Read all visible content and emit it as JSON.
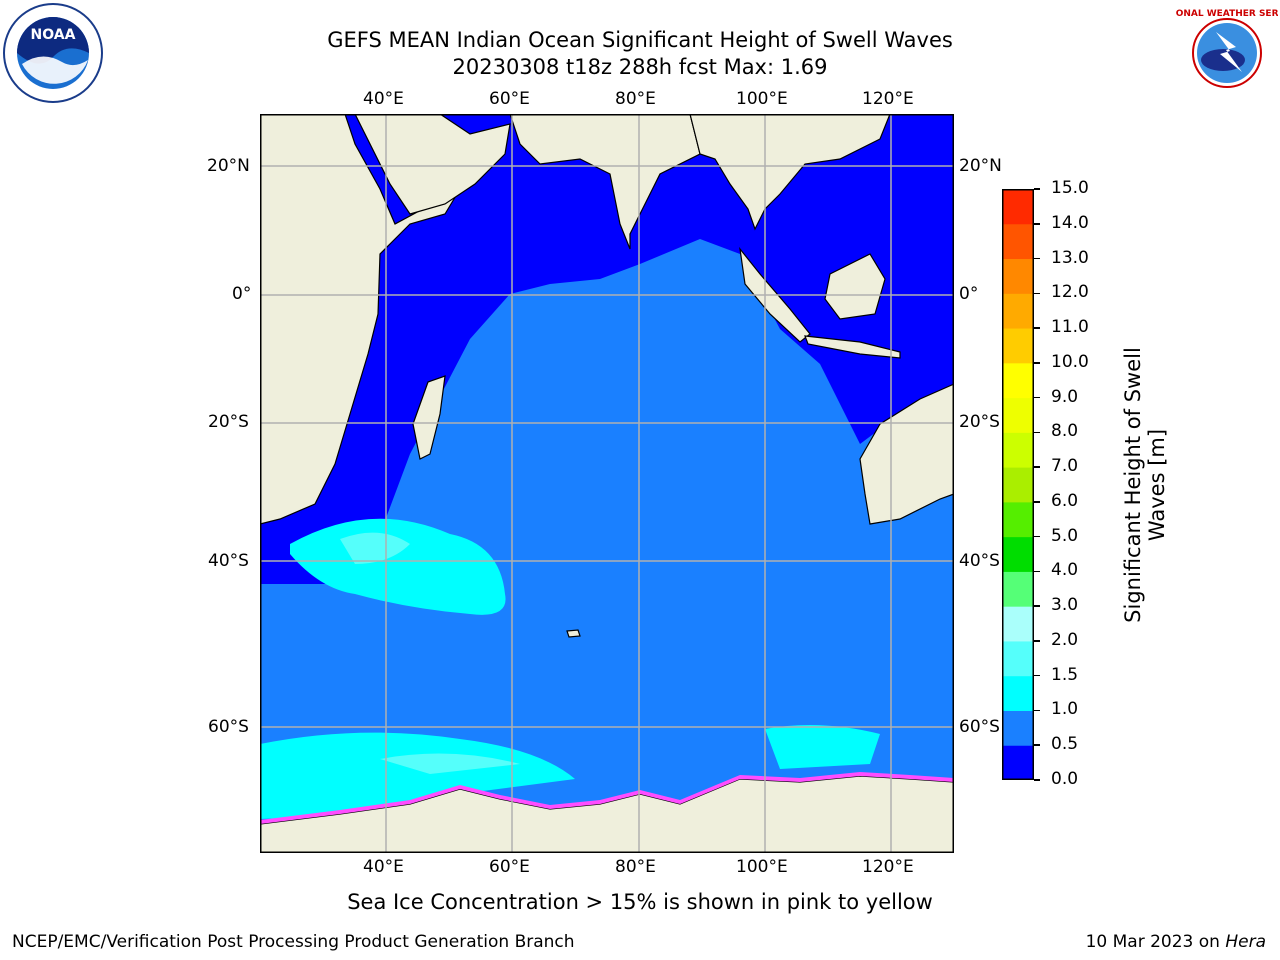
{
  "header": {
    "title_line1": "GEFS MEAN Indian Ocean Significant Height of Swell Waves",
    "title_line2": "20230308 t18z 288h fcst   Max: 1.69"
  },
  "logos": {
    "left_name": "NOAA",
    "right_name": "NATIONAL WEATHER SERVICE"
  },
  "map": {
    "lon_labels": [
      "40°E",
      "60°E",
      "80°E",
      "100°E",
      "120°E"
    ],
    "lat_labels": [
      "20°N",
      "0°",
      "20°S",
      "40°S",
      "60°S"
    ],
    "colors": {
      "land": "#efefdc",
      "deep_blue": "#0000ff",
      "mid_blue": "#1a80ff",
      "cyan": "#00ffff",
      "light_cyan": "#55fffb",
      "ice_pink": "#ff4dff",
      "ice_yellow": "#ffff00",
      "grid": "#b0b0b0"
    }
  },
  "colorbar": {
    "label": "Significant Height of Swell Waves [m]",
    "label_line1": "Significant Height of Swell",
    "label_line2": "Waves [m]",
    "ticks": [
      "0.0",
      "0.5",
      "1.0",
      "1.5",
      "2.0",
      "3.0",
      "4.0",
      "5.0",
      "6.0",
      "7.0",
      "8.0",
      "9.0",
      "10.0",
      "11.0",
      "12.0",
      "13.0",
      "14.0",
      "15.0"
    ],
    "colors": [
      "#0000ff",
      "#1a80ff",
      "#00ffff",
      "#55fffb",
      "#aafffb",
      "#55ff77",
      "#00dd00",
      "#55ee00",
      "#aaee00",
      "#ccff00",
      "#eeff00",
      "#ffff00",
      "#ffcc00",
      "#ffaa00",
      "#ff8800",
      "#ff5500",
      "#ff2a00",
      "#ff0000"
    ]
  },
  "footer": {
    "note": "Sea Ice Concentration > 15% is shown in pink to yellow",
    "left": "NCEP/EMC/Verification Post Processing Product Generation Branch",
    "right_prefix": "10 Mar 2023 on ",
    "right_host": "Hera"
  }
}
